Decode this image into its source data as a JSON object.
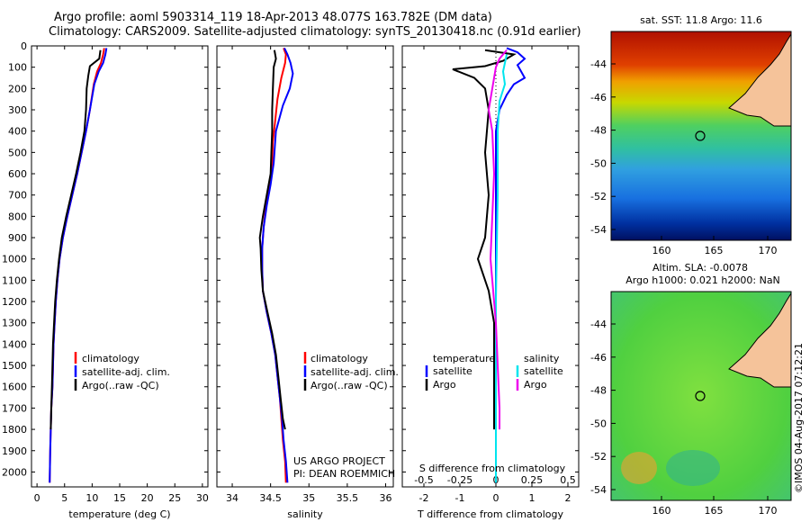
{
  "header": {
    "line1": "Argo profile: aoml 5903314_119 18-Apr-2013 48.077S 163.782E (DM data)",
    "line2": "Climatology: CARS2009. Satellite-adjusted climatology: synTS_20130418.nc (0.91d earlier)"
  },
  "colors": {
    "climatology": "#ff0000",
    "satellite": "#0000ff",
    "argo": "#000000",
    "sal_satellite": "#00e5ee",
    "sal_argo": "#ee00ee",
    "land": "#f5c39a"
  },
  "depth_ticks": [
    0,
    100,
    200,
    300,
    400,
    500,
    600,
    700,
    800,
    900,
    1000,
    1100,
    1200,
    1300,
    1400,
    1500,
    1600,
    1700,
    1800,
    1900,
    2000
  ],
  "chart_data": [
    {
      "type": "line",
      "title": "",
      "xlabel": "temperature (deg C)",
      "ylabel": "",
      "xlim": [
        -1,
        31
      ],
      "ylim": [
        2070,
        0
      ],
      "xticks": [
        0,
        5,
        10,
        15,
        20,
        25,
        30
      ],
      "legend": [
        "climatology",
        "satellite-adj. clim.",
        "Argo(..raw -QC)"
      ],
      "series": [
        {
          "name": "climatology",
          "color": "#ff0000",
          "points": [
            [
              12.2,
              10
            ],
            [
              12.0,
              40
            ],
            [
              11.6,
              80
            ],
            [
              10.9,
              120
            ],
            [
              10.3,
              180
            ],
            [
              9.6,
              300
            ],
            [
              8.9,
              400
            ],
            [
              8.1,
              500
            ],
            [
              7.3,
              600
            ],
            [
              6.4,
              700
            ],
            [
              5.5,
              800
            ],
            [
              4.7,
              900
            ],
            [
              4.1,
              1000
            ],
            [
              3.7,
              1100
            ],
            [
              3.4,
              1200
            ],
            [
              3.2,
              1300
            ],
            [
              3.0,
              1400
            ],
            [
              2.9,
              1500
            ],
            [
              2.8,
              1600
            ],
            [
              2.6,
              1700
            ],
            [
              2.5,
              1800
            ],
            [
              2.4,
              1900
            ],
            [
              2.3,
              2050
            ]
          ]
        },
        {
          "name": "satellite-adj. clim.",
          "color": "#0000ff",
          "points": [
            [
              12.6,
              10
            ],
            [
              12.4,
              40
            ],
            [
              12.0,
              80
            ],
            [
              11.2,
              120
            ],
            [
              10.4,
              180
            ],
            [
              9.6,
              300
            ],
            [
              8.9,
              400
            ],
            [
              8.1,
              500
            ],
            [
              7.3,
              600
            ],
            [
              6.4,
              700
            ],
            [
              5.5,
              800
            ],
            [
              4.7,
              900
            ],
            [
              4.1,
              1000
            ],
            [
              3.7,
              1100
            ],
            [
              3.4,
              1200
            ],
            [
              3.2,
              1300
            ],
            [
              3.0,
              1400
            ],
            [
              2.9,
              1500
            ],
            [
              2.8,
              1600
            ],
            [
              2.6,
              1700
            ],
            [
              2.5,
              1800
            ],
            [
              2.4,
              1900
            ],
            [
              2.3,
              2050
            ]
          ]
        },
        {
          "name": "Argo(..raw -QC)",
          "color": "#000000",
          "points": [
            [
              11.5,
              20
            ],
            [
              11.3,
              60
            ],
            [
              9.6,
              95
            ],
            [
              9.3,
              140
            ],
            [
              9.0,
              200
            ],
            [
              8.9,
              300
            ],
            [
              8.6,
              400
            ],
            [
              7.9,
              500
            ],
            [
              7.1,
              600
            ],
            [
              6.2,
              700
            ],
            [
              5.3,
              800
            ],
            [
              4.5,
              900
            ],
            [
              4.0,
              1000
            ],
            [
              3.6,
              1100
            ],
            [
              3.3,
              1200
            ],
            [
              3.1,
              1300
            ],
            [
              2.9,
              1400
            ],
            [
              2.8,
              1500
            ],
            [
              2.7,
              1600
            ],
            [
              2.6,
              1700
            ],
            [
              2.5,
              1800
            ]
          ]
        }
      ]
    },
    {
      "type": "line",
      "title": "",
      "xlabel": "salinity",
      "ylabel": "",
      "xlim": [
        33.8,
        36.1
      ],
      "ylim": [
        2070,
        0
      ],
      "xticks": [
        34,
        34.5,
        35,
        35.5,
        36
      ],
      "legend": [
        "climatology",
        "satellite-adj. clim.",
        "Argo(..raw -QC)"
      ],
      "series": [
        {
          "name": "climatology",
          "color": "#ff0000",
          "points": [
            [
              34.67,
              10
            ],
            [
              34.7,
              40
            ],
            [
              34.69,
              80
            ],
            [
              34.64,
              150
            ],
            [
              34.59,
              250
            ],
            [
              34.56,
              350
            ],
            [
              34.53,
              450
            ],
            [
              34.52,
              550
            ],
            [
              34.49,
              650
            ],
            [
              34.44,
              750
            ],
            [
              34.41,
              850
            ],
            [
              34.39,
              950
            ],
            [
              34.39,
              1050
            ],
            [
              34.4,
              1150
            ],
            [
              34.45,
              1250
            ],
            [
              34.51,
              1350
            ],
            [
              34.56,
              1450
            ],
            [
              34.59,
              1550
            ],
            [
              34.62,
              1650
            ],
            [
              34.64,
              1750
            ],
            [
              34.66,
              1850
            ],
            [
              34.69,
              1950
            ],
            [
              34.7,
              2050
            ]
          ]
        },
        {
          "name": "satellite-adj. clim.",
          "color": "#0000ff",
          "points": [
            [
              34.68,
              10
            ],
            [
              34.72,
              40
            ],
            [
              34.76,
              80
            ],
            [
              34.79,
              130
            ],
            [
              34.75,
              200
            ],
            [
              34.66,
              280
            ],
            [
              34.57,
              400
            ],
            [
              34.54,
              550
            ],
            [
              34.5,
              650
            ],
            [
              34.45,
              750
            ],
            [
              34.41,
              850
            ],
            [
              34.39,
              950
            ],
            [
              34.39,
              1050
            ],
            [
              34.4,
              1150
            ],
            [
              34.45,
              1250
            ],
            [
              34.51,
              1350
            ],
            [
              34.56,
              1450
            ],
            [
              34.59,
              1550
            ],
            [
              34.62,
              1650
            ],
            [
              34.65,
              1750
            ],
            [
              34.67,
              1850
            ],
            [
              34.7,
              1950
            ],
            [
              34.72,
              2050
            ]
          ]
        },
        {
          "name": "Argo(..raw -QC)",
          "color": "#000000",
          "points": [
            [
              34.55,
              20
            ],
            [
              34.57,
              60
            ],
            [
              34.54,
              100
            ],
            [
              34.53,
              200
            ],
            [
              34.52,
              300
            ],
            [
              34.52,
              400
            ],
            [
              34.51,
              500
            ],
            [
              34.5,
              600
            ],
            [
              34.45,
              700
            ],
            [
              34.4,
              800
            ],
            [
              34.36,
              900
            ],
            [
              34.37,
              950
            ],
            [
              34.38,
              1050
            ],
            [
              34.4,
              1150
            ],
            [
              34.46,
              1250
            ],
            [
              34.52,
              1350
            ],
            [
              34.57,
              1450
            ],
            [
              34.6,
              1550
            ],
            [
              34.63,
              1650
            ],
            [
              34.66,
              1750
            ],
            [
              34.69,
              1800
            ]
          ]
        }
      ]
    },
    {
      "type": "line",
      "title": "",
      "xlabel": "T difference from climatology",
      "xlabel_top": "S difference from climatology",
      "ylabel": "",
      "xlim": [
        -2.6,
        2.3
      ],
      "ylim": [
        2070,
        0
      ],
      "xticks": [
        -2,
        -1,
        0,
        1,
        2
      ],
      "sticks": [
        -0.5,
        -0.25,
        0,
        0.25,
        0.5
      ],
      "legend_temperature": [
        "temperature",
        "satellite",
        "Argo"
      ],
      "legend_salinity": [
        "salinity",
        "satellite",
        "Argo"
      ],
      "series": [
        {
          "name": "satellite",
          "color": "#0000ff",
          "points": [
            [
              0.3,
              10
            ],
            [
              0.6,
              30
            ],
            [
              0.8,
              60
            ],
            [
              0.6,
              90
            ],
            [
              0.7,
              120
            ],
            [
              0.8,
              150
            ],
            [
              0.5,
              180
            ],
            [
              0.3,
              230
            ],
            [
              0.1,
              300
            ],
            [
              0.0,
              400
            ],
            [
              0.0,
              600
            ],
            [
              0.0,
              1000
            ],
            [
              0.0,
              1500
            ],
            [
              0.0,
              2050
            ]
          ]
        },
        {
          "name": "Argo",
          "color": "#000000",
          "points": [
            [
              -0.3,
              20
            ],
            [
              0.5,
              40
            ],
            [
              0.2,
              70
            ],
            [
              -0.3,
              95
            ],
            [
              -1.2,
              110
            ],
            [
              -0.6,
              150
            ],
            [
              -0.3,
              200
            ],
            [
              -0.2,
              300
            ],
            [
              -0.3,
              500
            ],
            [
              -0.2,
              700
            ],
            [
              -0.3,
              900
            ],
            [
              -0.5,
              1000
            ],
            [
              -0.2,
              1150
            ],
            [
              -0.05,
              1300
            ],
            [
              -0.05,
              1500
            ],
            [
              -0.05,
              1800
            ]
          ]
        },
        {
          "name": "satellite",
          "color": "#00e5ee",
          "points": [
            [
              0.3,
              40
            ],
            [
              0.2,
              120
            ],
            [
              0.25,
              180
            ],
            [
              0.1,
              260
            ],
            [
              0.05,
              400
            ],
            [
              0.05,
              700
            ],
            [
              0.0,
              1200
            ],
            [
              0.0,
              1800
            ],
            [
              0.0,
              2050
            ]
          ]
        },
        {
          "name": "Argo",
          "color": "#ee00ee",
          "points": [
            [
              0.3,
              20
            ],
            [
              0.1,
              60
            ],
            [
              0.0,
              100
            ],
            [
              -0.1,
              200
            ],
            [
              -0.2,
              300
            ],
            [
              -0.1,
              400
            ],
            [
              -0.05,
              600
            ],
            [
              -0.1,
              800
            ],
            [
              -0.15,
              1000
            ],
            [
              -0.1,
              1100
            ],
            [
              0.0,
              1300
            ],
            [
              0.05,
              1500
            ],
            [
              0.1,
              1700
            ],
            [
              0.1,
              1800
            ]
          ]
        }
      ]
    }
  ],
  "map_top": {
    "title": "sat. SST: 11.8 Argo: 11.6",
    "yticks": [
      "-44",
      "-46",
      "-48",
      "-50",
      "-52",
      "-54"
    ],
    "xticks": [
      "160",
      "165",
      "170"
    ]
  },
  "map_bottom": {
    "title1": "Altim. SLA: -0.0078",
    "title2": "Argo h1000: 0.021 h2000: NaN",
    "yticks": [
      "-44",
      "-46",
      "-48",
      "-50",
      "-52",
      "-54"
    ],
    "xticks": [
      "160",
      "165",
      "170"
    ]
  },
  "credits": {
    "project": "US ARGO PROJECT",
    "pi": "PI: DEAN ROEMMICH",
    "imos": "©IMOS 04-Aug-2017 07:12:21"
  }
}
